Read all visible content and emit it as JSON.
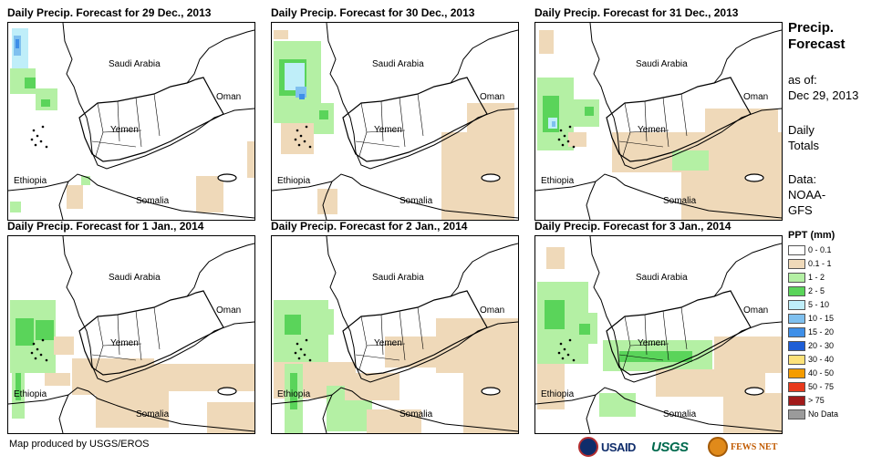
{
  "panels": [
    {
      "title": "Daily Precip. Forecast for 29 Dec., 2013"
    },
    {
      "title": "Daily Precip. Forecast for 30 Dec., 2013"
    },
    {
      "title": "Daily Precip. Forecast for 31 Dec., 2013"
    },
    {
      "title": "Daily Precip. Forecast for 1 Jan., 2014"
    },
    {
      "title": "Daily Precip. Forecast for 2 Jan., 2014"
    },
    {
      "title": "Daily Precip. Forecast for 3 Jan., 2014"
    }
  ],
  "places": {
    "saudi": "Saudi Arabia",
    "oman": "Oman",
    "yemen": "Yemen",
    "ethiopia": "Ethiopia",
    "somalia": "Somalia"
  },
  "sidebar": {
    "title_line1": "Precip.",
    "title_line2": "Forecast",
    "asof_label": "as of:",
    "asof_date": "Dec 29, 2013",
    "daily1": "Daily",
    "daily2": "Totals",
    "data1": "Data:",
    "data2": "NOAA-",
    "data3": "GFS"
  },
  "legend": {
    "title": "PPT (mm)",
    "items": [
      {
        "label": "0 - 0.1",
        "color": "#ffffff"
      },
      {
        "label": "0.1 - 1",
        "color": "#efd9b9"
      },
      {
        "label": "1 - 2",
        "color": "#b4f0a4"
      },
      {
        "label": "2 - 5",
        "color": "#5ad45a"
      },
      {
        "label": "5 - 10",
        "color": "#bfeef9"
      },
      {
        "label": "10 - 15",
        "color": "#7fc0ef"
      },
      {
        "label": "15 - 20",
        "color": "#3e8fe8"
      },
      {
        "label": "20 - 30",
        "color": "#1f5ed6"
      },
      {
        "label": "30 - 40",
        "color": "#fde27a"
      },
      {
        "label": "40 - 50",
        "color": "#f59c00"
      },
      {
        "label": "50 - 75",
        "color": "#e83a1d"
      },
      {
        "label": "> 75",
        "color": "#a11a1a"
      },
      {
        "label": "No Data",
        "color": "#9b9b9b"
      }
    ]
  },
  "footer": {
    "credit": "Map produced by USGS/EROS",
    "usaid": "USAID",
    "usgs": "USGS",
    "fews": "FEWS NET"
  }
}
